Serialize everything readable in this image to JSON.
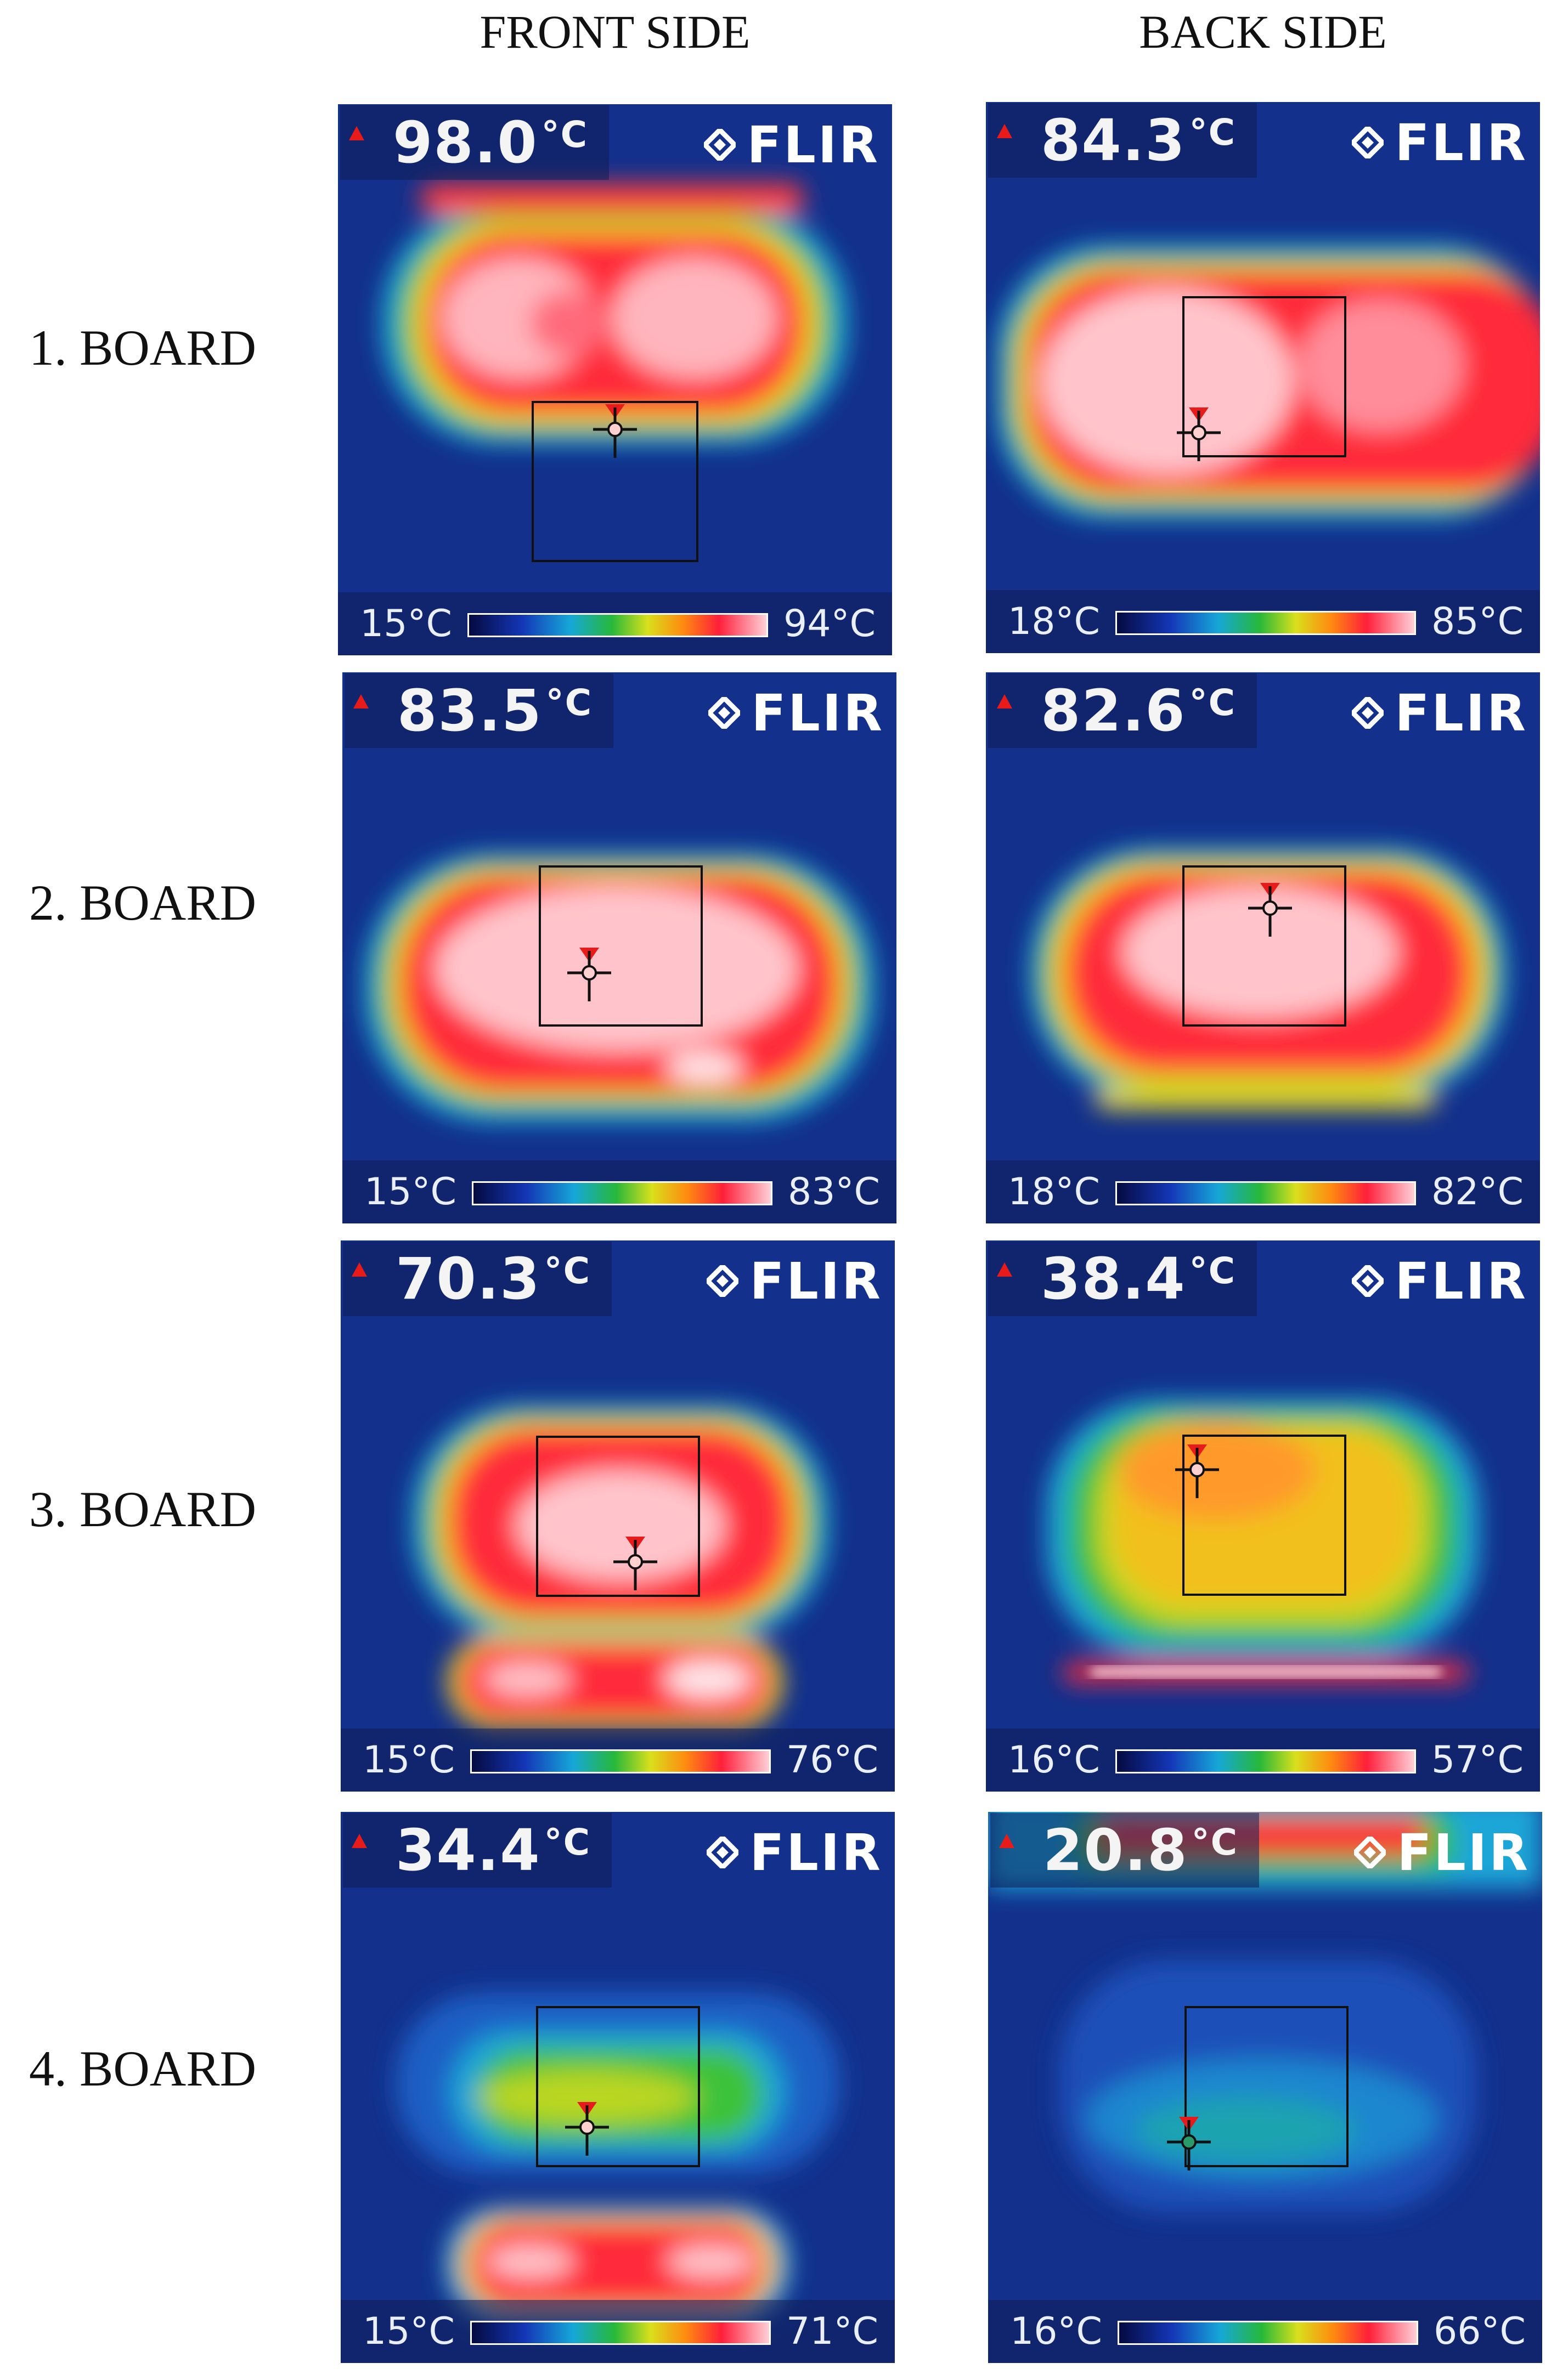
{
  "columns": {
    "front": "FRONT SIDE",
    "back": "BACK SIDE"
  },
  "rows": [
    {
      "label": "1. BOARD",
      "front": {
        "max_temp": "98.0",
        "unit": "°C",
        "scale_min": "15°C",
        "scale_max": "94°C"
      },
      "back": {
        "max_temp": "84.3",
        "unit": "°C",
        "scale_min": "18°C",
        "scale_max": "85°C"
      }
    },
    {
      "label": "2. BOARD",
      "front": {
        "max_temp": "83.5",
        "unit": "°C",
        "scale_min": "15°C",
        "scale_max": "83°C"
      },
      "back": {
        "max_temp": "82.6",
        "unit": "°C",
        "scale_min": "18°C",
        "scale_max": "82°C"
      }
    },
    {
      "label": "3. BOARD",
      "front": {
        "max_temp": "70.3",
        "unit": "°C",
        "scale_min": "15°C",
        "scale_max": "76°C"
      },
      "back": {
        "max_temp": "38.4",
        "unit": "°C",
        "scale_min": "16°C",
        "scale_max": "57°C"
      }
    },
    {
      "label": "4. BOARD",
      "front": {
        "max_temp": "34.4",
        "unit": "°C",
        "scale_min": "15°C",
        "scale_max": "71°C"
      },
      "back": {
        "max_temp": "20.8",
        "unit": "°C",
        "scale_min": "16°C",
        "scale_max": "66°C"
      }
    }
  ],
  "logo_text": "FLIR",
  "icons": {
    "hotspot": "red-triangle-icon",
    "crosshair": "crosshair-icon",
    "logo": "flir-diamond-icon"
  },
  "colors": {
    "background": "#14308a",
    "hot": "#ff1f3a",
    "warm": "#ffd21a",
    "mid": "#27b83a",
    "cool": "#16a7d8"
  }
}
